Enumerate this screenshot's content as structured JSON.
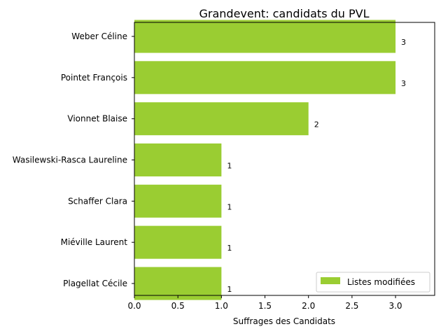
{
  "chart_data": {
    "type": "bar",
    "orientation": "horizontal",
    "title": "Grandevent: candidats du PVL",
    "xlabel": "Suffrages des Candidats",
    "ylabel": "",
    "categories": [
      "Weber Céline",
      "Pointet François",
      "Vionnet Blaise",
      "Wasilewski-Rasca Laureline",
      "Schaffer Clara",
      "Miéville Laurent",
      "Plagellat Cécile"
    ],
    "series": [
      {
        "name": "Listes modifiées",
        "color": "#9acd32",
        "values": [
          3,
          3,
          2,
          1,
          1,
          1,
          1
        ]
      }
    ],
    "data_labels": [
      "3",
      "3",
      "2",
      "1",
      "1",
      "1",
      "1"
    ],
    "xlim": [
      0,
      3.45
    ],
    "x_ticks": [
      "0.0",
      "0.5",
      "1.0",
      "1.5",
      "2.0",
      "2.5",
      "3.0"
    ],
    "x_tick_values": [
      0,
      0.5,
      1,
      1.5,
      2,
      2.5,
      3
    ],
    "grid": false,
    "legend_position": "bottom-right"
  }
}
